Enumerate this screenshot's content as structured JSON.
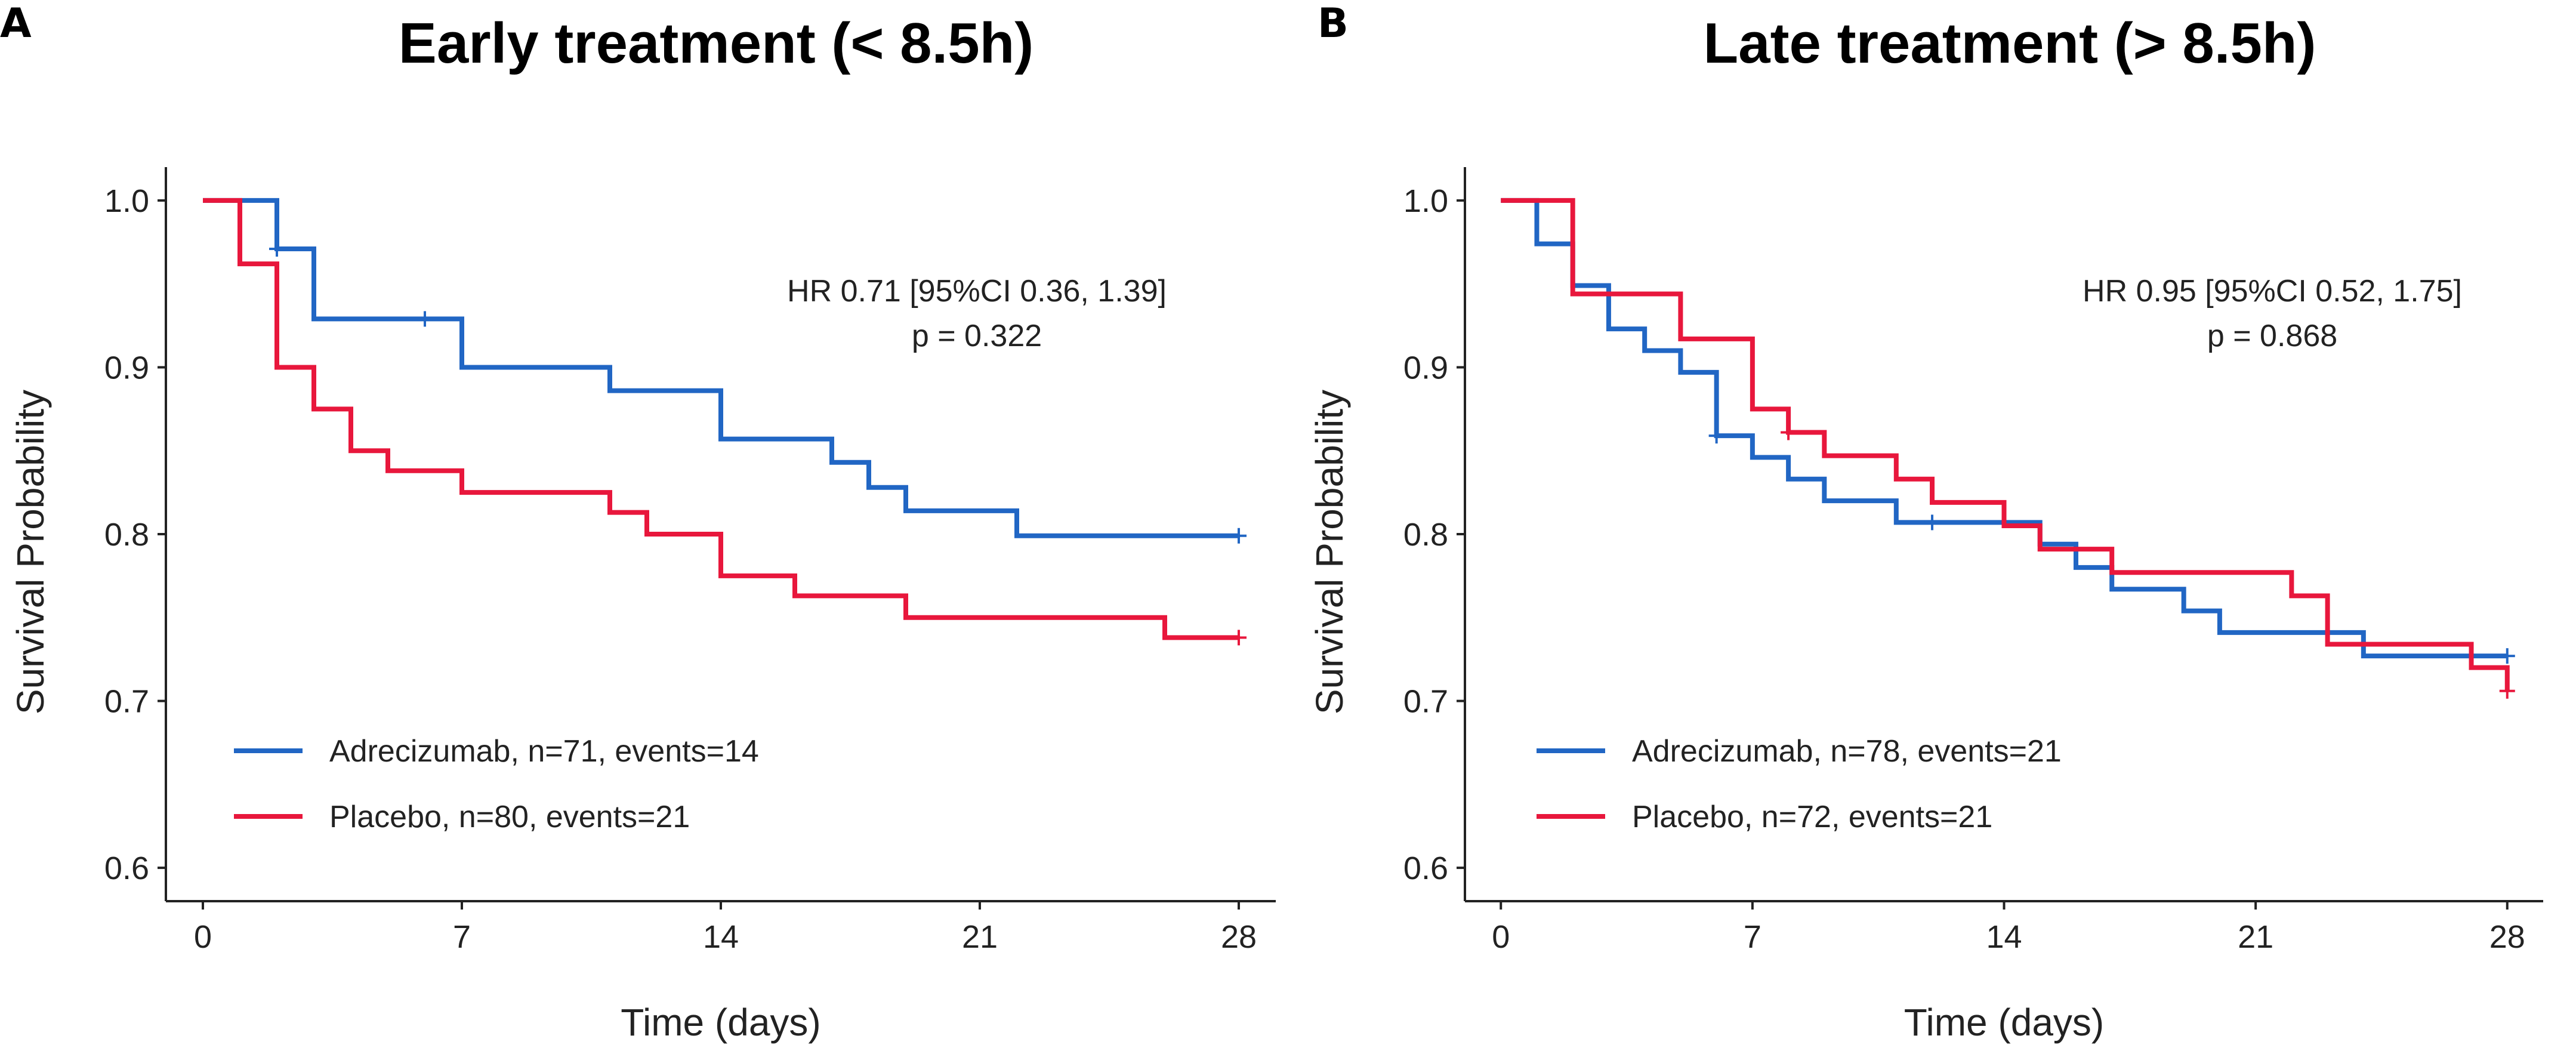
{
  "colors": {
    "adrecizumab": "#2166c4",
    "placebo": "#e8173c"
  },
  "chart_data": [
    {
      "panel": "A",
      "type": "line",
      "title": "Early treatment (< 8.5h)",
      "xlabel": "Time (days)",
      "ylabel": "Survival Probability",
      "xlim": [
        -1,
        29
      ],
      "ylim": [
        0.58,
        1.02
      ],
      "xticks": [
        "0",
        "7",
        "14",
        "21",
        "28"
      ],
      "yticks": [
        "0.6",
        "0.7",
        "0.8",
        "0.9",
        "1.0"
      ],
      "annotation": [
        "HR 0.71 [95%CI 0.36, 1.39]",
        "p = 0.322"
      ],
      "series": [
        {
          "name": "Adrecizumab, n=71, events=14",
          "color_key": "adrecizumab",
          "steps": [
            [
              0,
              1.0
            ],
            [
              2,
              0.971
            ],
            [
              3,
              0.929
            ],
            [
              7,
              0.9
            ],
            [
              11,
              0.886
            ],
            [
              14,
              0.857
            ],
            [
              17,
              0.843
            ],
            [
              18,
              0.828
            ],
            [
              19,
              0.814
            ],
            [
              22,
              0.799
            ],
            [
              28,
              0.799
            ]
          ],
          "censored": [
            [
              2,
              0.971
            ],
            [
              6,
              0.929
            ],
            [
              28,
              0.799
            ]
          ]
        },
        {
          "name": "Placebo, n=80, events=21",
          "color_key": "placebo",
          "steps": [
            [
              0,
              1.0
            ],
            [
              1,
              0.962
            ],
            [
              2,
              0.9
            ],
            [
              3,
              0.875
            ],
            [
              4,
              0.85
            ],
            [
              5,
              0.838
            ],
            [
              7,
              0.825
            ],
            [
              11,
              0.813
            ],
            [
              12,
              0.8
            ],
            [
              14,
              0.775
            ],
            [
              16,
              0.763
            ],
            [
              19,
              0.75
            ],
            [
              26,
              0.738
            ],
            [
              28,
              0.738
            ]
          ],
          "censored": [
            [
              28,
              0.738
            ]
          ]
        }
      ]
    },
    {
      "panel": "B",
      "type": "line",
      "title": "Late treatment (> 8.5h)",
      "xlabel": "Time (days)",
      "ylabel": "Survival Probability",
      "xlim": [
        -1,
        29
      ],
      "ylim": [
        0.58,
        1.02
      ],
      "xticks": [
        "0",
        "7",
        "14",
        "21",
        "28"
      ],
      "yticks": [
        "0.6",
        "0.7",
        "0.8",
        "0.9",
        "1.0"
      ],
      "annotation": [
        "HR 0.95 [95%CI 0.52, 1.75]",
        "p = 0.868"
      ],
      "series": [
        {
          "name": "Adrecizumab, n=78, events=21",
          "color_key": "adrecizumab",
          "steps": [
            [
              0,
              1.0
            ],
            [
              1,
              0.974
            ],
            [
              2,
              0.949
            ],
            [
              3,
              0.923
            ],
            [
              4,
              0.91
            ],
            [
              5,
              0.897
            ],
            [
              6,
              0.859
            ],
            [
              7,
              0.846
            ],
            [
              8,
              0.833
            ],
            [
              9,
              0.82
            ],
            [
              11,
              0.807
            ],
            [
              15,
              0.794
            ],
            [
              16,
              0.78
            ],
            [
              17,
              0.767
            ],
            [
              19,
              0.754
            ],
            [
              20,
              0.741
            ],
            [
              24,
              0.727
            ],
            [
              28,
              0.727
            ]
          ],
          "censored": [
            [
              6,
              0.859
            ],
            [
              12,
              0.807
            ],
            [
              28,
              0.727
            ]
          ]
        },
        {
          "name": "Placebo, n=72, events=21",
          "color_key": "placebo",
          "steps": [
            [
              0,
              1.0
            ],
            [
              2,
              0.944
            ],
            [
              5,
              0.917
            ],
            [
              7,
              0.875
            ],
            [
              8,
              0.861
            ],
            [
              9,
              0.847
            ],
            [
              11,
              0.833
            ],
            [
              12,
              0.819
            ],
            [
              14,
              0.805
            ],
            [
              15,
              0.791
            ],
            [
              17,
              0.777
            ],
            [
              22,
              0.763
            ],
            [
              23,
              0.734
            ],
            [
              27,
              0.72
            ],
            [
              28,
              0.706
            ]
          ],
          "censored": [
            [
              8,
              0.861
            ],
            [
              28,
              0.706
            ]
          ]
        }
      ]
    }
  ]
}
